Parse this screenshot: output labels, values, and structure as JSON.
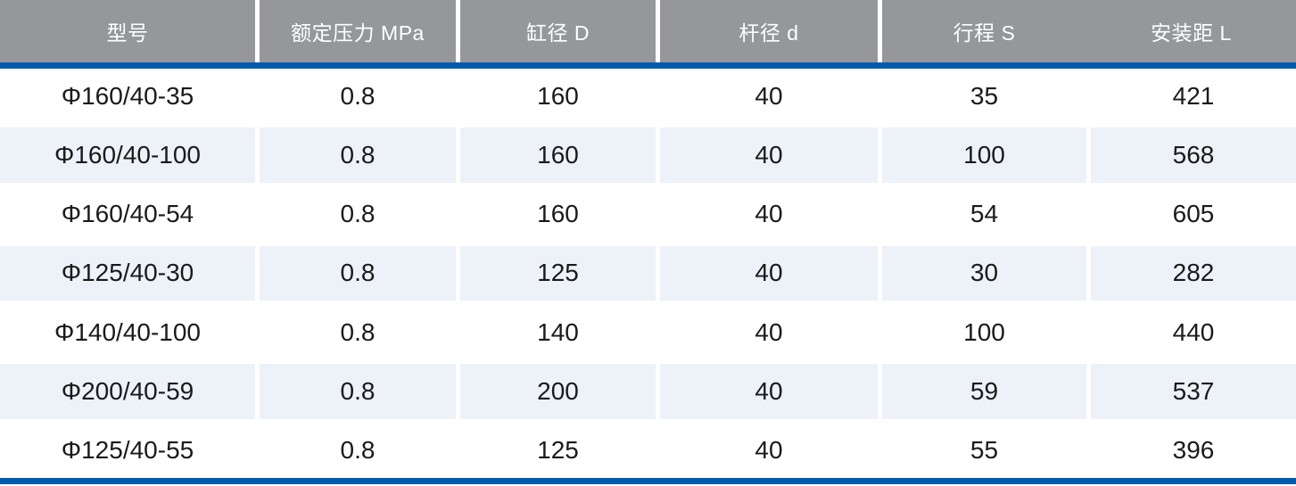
{
  "chart_data": {
    "type": "table",
    "columns": [
      "型号",
      "额定压力 MPa",
      "缸径 D",
      "杆径 d",
      "行程 S",
      "安装距 L"
    ],
    "rows": [
      [
        "Φ160/40-35",
        "0.8",
        "160",
        "40",
        "35",
        "421"
      ],
      [
        "Φ160/40-100",
        "0.8",
        "160",
        "40",
        "100",
        "568"
      ],
      [
        "Φ160/40-54",
        "0.8",
        "160",
        "40",
        "54",
        "605"
      ],
      [
        "Φ125/40-30",
        "0.8",
        "125",
        "40",
        "30",
        "282"
      ],
      [
        "Φ140/40-100",
        "0.8",
        "140",
        "40",
        "100",
        "440"
      ],
      [
        "Φ200/40-59",
        "0.8",
        "200",
        "40",
        "59",
        "537"
      ],
      [
        "Φ125/40-55",
        "0.8",
        "125",
        "40",
        "55",
        "396"
      ]
    ]
  },
  "colors": {
    "header_bg": "#95979A",
    "header_text": "#FFFFFF",
    "accent_blue": "#005BAC",
    "stripe_bg": "#EDF1F8",
    "body_text": "#1A1A1A"
  }
}
